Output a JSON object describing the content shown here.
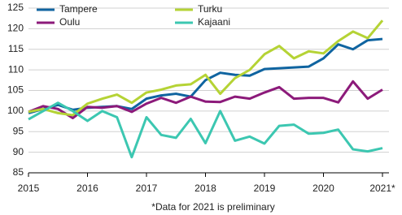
{
  "chart_data": {
    "type": "line",
    "categories": [
      "2015",
      null,
      null,
      null,
      "2016",
      null,
      null,
      null,
      "2017",
      null,
      null,
      null,
      "2018",
      null,
      null,
      null,
      "2019",
      null,
      null,
      null,
      "2020",
      null,
      null,
      null,
      "2021*"
    ],
    "series": [
      {
        "name": "Tampere",
        "color": "#0f64a0",
        "values": [
          99.5,
          100.5,
          101.5,
          100.3,
          100.8,
          101.0,
          101.2,
          100.5,
          103.0,
          103.8,
          104.2,
          103.5,
          107.5,
          109.3,
          108.8,
          108.6,
          110.2,
          110.4,
          110.6,
          110.8,
          112.8,
          116.2,
          115.0,
          117.2,
          117.5
        ]
      },
      {
        "name": "Oulu",
        "color": "#8c1a7a",
        "values": [
          99.8,
          101.2,
          100.5,
          98.3,
          101.0,
          100.8,
          101.2,
          99.8,
          101.8,
          103.2,
          102.0,
          103.5,
          102.3,
          102.2,
          103.5,
          103.0,
          104.5,
          105.8,
          103.0,
          103.2,
          103.2,
          102.1,
          107.2,
          103.0,
          105.2
        ]
      },
      {
        "name": "Turku",
        "color": "#b5d335",
        "values": [
          99.8,
          100.5,
          99.5,
          99.0,
          101.8,
          103.0,
          104.0,
          102.0,
          104.5,
          105.2,
          106.2,
          106.5,
          108.8,
          104.2,
          108.0,
          110.0,
          113.8,
          115.8,
          112.8,
          114.5,
          114.0,
          117.0,
          119.3,
          117.7,
          122.0
        ]
      },
      {
        "name": "Kajaani",
        "color": "#3cc7b1",
        "values": [
          98.0,
          100.0,
          102.0,
          100.0,
          97.6,
          100.0,
          98.5,
          88.8,
          98.5,
          94.2,
          93.5,
          98.1,
          92.2,
          100.0,
          92.8,
          93.8,
          92.1,
          96.4,
          96.7,
          94.5,
          94.7,
          95.5,
          90.7,
          90.2,
          91.0
        ]
      }
    ],
    "ylim": [
      85,
      125
    ],
    "yticks": [
      85,
      90,
      95,
      100,
      105,
      110,
      115,
      120,
      125
    ],
    "grid": true,
    "legend": "upper left",
    "footnote": "*Data for 2021 is preliminary"
  }
}
